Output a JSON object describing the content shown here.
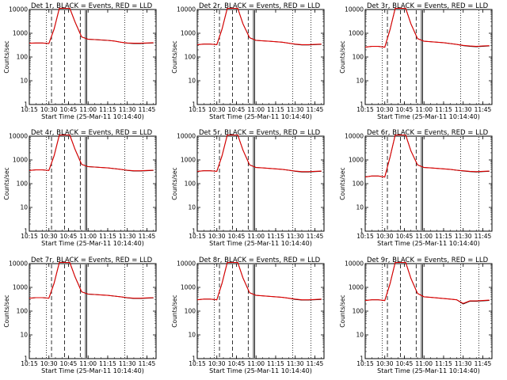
{
  "figure": {
    "xlabel": "Start Time (25-Mar-11 10:14:40)",
    "ylabel": "Counts/sec",
    "series_colors": {
      "events": "#000000",
      "lld": "#e00000"
    },
    "x_tick_labels": [
      "10:15",
      "10:30",
      "10:45",
      "11:00",
      "11:15",
      "11:30",
      "11:45"
    ],
    "y_tick_labels": [
      "1",
      "10",
      "100",
      "1000",
      "10000"
    ]
  },
  "chart_data": [
    {
      "type": "line",
      "title": "Det 1r BLACK = Events, RED = LLD",
      "x": [
        "10:15",
        "10:20",
        "10:25",
        "10:30",
        "10:34",
        "10:38",
        "10:42",
        "10:46",
        "10:50",
        "10:55",
        "11:00",
        "11:05",
        "11:10",
        "11:15",
        "11:20",
        "11:25",
        "11:30",
        "11:35",
        "11:40",
        "11:45",
        "11:50"
      ],
      "series": [
        {
          "name": "BLACK = Events",
          "values": [
            380,
            390,
            390,
            370,
            1500,
            12000,
            12000,
            12000,
            3000,
            700,
            560,
            540,
            520,
            500,
            470,
            420,
            380,
            370,
            370,
            380,
            390
          ]
        },
        {
          "name": "RED = LLD",
          "values": [
            380,
            390,
            390,
            370,
            1500,
            12000,
            12000,
            12000,
            3000,
            700,
            560,
            540,
            520,
            500,
            470,
            420,
            390,
            380,
            380,
            390,
            400
          ]
        }
      ],
      "ylim": [
        1,
        10000
      ],
      "yscale": "log"
    },
    {
      "type": "line",
      "title": "Det 2r BLACK = Events, RED = LLD",
      "x": [
        "10:15",
        "10:20",
        "10:25",
        "10:30",
        "10:34",
        "10:38",
        "10:42",
        "10:46",
        "10:50",
        "10:55",
        "11:00",
        "11:05",
        "11:10",
        "11:15",
        "11:20",
        "11:25",
        "11:30",
        "11:35",
        "11:40",
        "11:45",
        "11:50"
      ],
      "series": [
        {
          "name": "BLACK = Events",
          "values": [
            330,
            350,
            350,
            330,
            1500,
            12000,
            12000,
            12000,
            2500,
            650,
            500,
            480,
            460,
            440,
            420,
            380,
            340,
            320,
            320,
            330,
            340
          ]
        },
        {
          "name": "RED = LLD",
          "values": [
            330,
            350,
            350,
            330,
            1500,
            12000,
            12000,
            12000,
            2500,
            650,
            500,
            480,
            460,
            440,
            420,
            380,
            350,
            330,
            330,
            340,
            350
          ]
        }
      ],
      "ylim": [
        1,
        10000
      ],
      "yscale": "log"
    },
    {
      "type": "line",
      "title": "Det 3r BLACK = Events, RED = LLD",
      "x": [
        "10:15",
        "10:20",
        "10:25",
        "10:30",
        "10:34",
        "10:38",
        "10:42",
        "10:46",
        "10:50",
        "10:55",
        "11:00",
        "11:05",
        "11:10",
        "11:15",
        "11:20",
        "11:25",
        "11:30",
        "11:35",
        "11:40",
        "11:45",
        "11:50"
      ],
      "series": [
        {
          "name": "BLACK = Events",
          "values": [
            260,
            280,
            280,
            260,
            1400,
            12000,
            12000,
            12000,
            2500,
            600,
            460,
            440,
            420,
            400,
            370,
            340,
            300,
            280,
            270,
            280,
            290
          ]
        },
        {
          "name": "RED = LLD",
          "values": [
            260,
            280,
            280,
            260,
            1400,
            12000,
            12000,
            12000,
            2500,
            600,
            460,
            440,
            420,
            400,
            370,
            340,
            310,
            290,
            280,
            290,
            300
          ]
        }
      ],
      "ylim": [
        1,
        10000
      ],
      "yscale": "log"
    },
    {
      "type": "line",
      "title": "Det 4r BLACK = Events, RED = LLD",
      "x": [
        "10:15",
        "10:20",
        "10:25",
        "10:30",
        "10:34",
        "10:38",
        "10:42",
        "10:46",
        "10:50",
        "10:55",
        "11:00",
        "11:05",
        "11:10",
        "11:15",
        "11:20",
        "11:25",
        "11:30",
        "11:35",
        "11:40",
        "11:45",
        "11:50"
      ],
      "series": [
        {
          "name": "BLACK = Events",
          "values": [
            360,
            380,
            380,
            360,
            1500,
            12000,
            12000,
            12000,
            2800,
            650,
            520,
            500,
            480,
            460,
            430,
            400,
            360,
            340,
            340,
            350,
            360
          ]
        },
        {
          "name": "RED = LLD",
          "values": [
            360,
            380,
            380,
            360,
            1500,
            12000,
            12000,
            12000,
            2800,
            650,
            520,
            500,
            480,
            460,
            430,
            400,
            370,
            350,
            350,
            360,
            370
          ]
        }
      ],
      "ylim": [
        1,
        10000
      ],
      "yscale": "log"
    },
    {
      "type": "line",
      "title": "Det 5r BLACK = Events, RED = LLD",
      "x": [
        "10:15",
        "10:20",
        "10:25",
        "10:30",
        "10:34",
        "10:38",
        "10:42",
        "10:46",
        "10:50",
        "10:55",
        "11:00",
        "11:05",
        "11:10",
        "11:15",
        "11:20",
        "11:25",
        "11:30",
        "11:35",
        "11:40",
        "11:45",
        "11:50"
      ],
      "series": [
        {
          "name": "BLACK = Events",
          "values": [
            330,
            350,
            350,
            330,
            1500,
            12000,
            12000,
            12000,
            2600,
            620,
            480,
            460,
            440,
            420,
            400,
            370,
            330,
            310,
            310,
            320,
            330
          ]
        },
        {
          "name": "RED = LLD",
          "values": [
            330,
            350,
            350,
            330,
            1500,
            12000,
            12000,
            12000,
            2600,
            620,
            480,
            460,
            440,
            420,
            400,
            370,
            340,
            320,
            320,
            330,
            340
          ]
        }
      ],
      "ylim": [
        1,
        10000
      ],
      "yscale": "log"
    },
    {
      "type": "line",
      "title": "Det 6r BLACK = Events, RED = LLD",
      "x": [
        "10:15",
        "10:20",
        "10:25",
        "10:30",
        "10:34",
        "10:38",
        "10:42",
        "10:46",
        "10:50",
        "10:55",
        "11:00",
        "11:05",
        "11:10",
        "11:15",
        "11:20",
        "11:25",
        "11:30",
        "11:35",
        "11:40",
        "11:45",
        "11:50"
      ],
      "series": [
        {
          "name": "BLACK = Events",
          "values": [
            190,
            210,
            210,
            190,
            1300,
            12000,
            12000,
            12000,
            2400,
            620,
            480,
            460,
            440,
            420,
            400,
            370,
            340,
            320,
            310,
            320,
            330
          ]
        },
        {
          "name": "RED = LLD",
          "values": [
            190,
            210,
            210,
            190,
            1300,
            12000,
            12000,
            12000,
            2400,
            620,
            480,
            460,
            440,
            420,
            400,
            370,
            350,
            330,
            320,
            330,
            340
          ]
        }
      ],
      "ylim": [
        1,
        10000
      ],
      "yscale": "log"
    },
    {
      "type": "line",
      "title": "Det 7r BLACK = Events, RED = LLD",
      "x": [
        "10:15",
        "10:20",
        "10:25",
        "10:30",
        "10:34",
        "10:38",
        "10:42",
        "10:46",
        "10:50",
        "10:55",
        "11:00",
        "11:05",
        "11:10",
        "11:15",
        "11:20",
        "11:25",
        "11:30",
        "11:35",
        "11:40",
        "11:45",
        "11:50"
      ],
      "series": [
        {
          "name": "BLACK = Events",
          "values": [
            350,
            370,
            370,
            350,
            1500,
            12000,
            12000,
            12000,
            2800,
            650,
            520,
            500,
            480,
            460,
            430,
            400,
            360,
            340,
            340,
            350,
            360
          ]
        },
        {
          "name": "RED = LLD",
          "values": [
            350,
            370,
            370,
            350,
            1500,
            12000,
            12000,
            12000,
            2800,
            650,
            520,
            500,
            480,
            460,
            430,
            400,
            370,
            350,
            350,
            360,
            370
          ]
        }
      ],
      "ylim": [
        1,
        10000
      ],
      "yscale": "log"
    },
    {
      "type": "line",
      "title": "Det 8r BLACK = Events, RED = LLD",
      "x": [
        "10:15",
        "10:20",
        "10:25",
        "10:30",
        "10:34",
        "10:38",
        "10:42",
        "10:46",
        "10:50",
        "10:55",
        "11:00",
        "11:05",
        "11:10",
        "11:15",
        "11:20",
        "11:25",
        "11:30",
        "11:35",
        "11:40",
        "11:45",
        "11:50"
      ],
      "series": [
        {
          "name": "BLACK = Events",
          "values": [
            300,
            320,
            320,
            300,
            1500,
            12000,
            12000,
            12000,
            2500,
            600,
            460,
            440,
            420,
            400,
            380,
            350,
            310,
            290,
            290,
            300,
            310
          ]
        },
        {
          "name": "RED = LLD",
          "values": [
            300,
            320,
            320,
            300,
            1500,
            12000,
            12000,
            12000,
            2500,
            600,
            460,
            440,
            420,
            400,
            380,
            350,
            320,
            300,
            300,
            310,
            320
          ]
        }
      ],
      "ylim": [
        1,
        10000
      ],
      "yscale": "log"
    },
    {
      "type": "line",
      "title": "Det 9r BLACK = Events, RED = LLD",
      "x": [
        "10:15",
        "10:20",
        "10:25",
        "10:30",
        "10:34",
        "10:38",
        "10:42",
        "10:46",
        "10:50",
        "10:55",
        "11:00",
        "11:05",
        "11:10",
        "11:15",
        "11:20",
        "11:25",
        "11:30",
        "11:35",
        "11:40",
        "11:45",
        "11:50"
      ],
      "series": [
        {
          "name": "BLACK = Events",
          "values": [
            280,
            300,
            300,
            280,
            1400,
            12000,
            12000,
            12000,
            2400,
            560,
            400,
            380,
            360,
            340,
            320,
            300,
            200,
            260,
            260,
            270,
            280
          ]
        },
        {
          "name": "RED = LLD",
          "values": [
            280,
            300,
            300,
            280,
            1400,
            12000,
            12000,
            12000,
            2400,
            560,
            400,
            380,
            360,
            340,
            320,
            300,
            210,
            270,
            270,
            280,
            290
          ]
        }
      ],
      "ylim": [
        1,
        10000
      ],
      "yscale": "log"
    }
  ]
}
